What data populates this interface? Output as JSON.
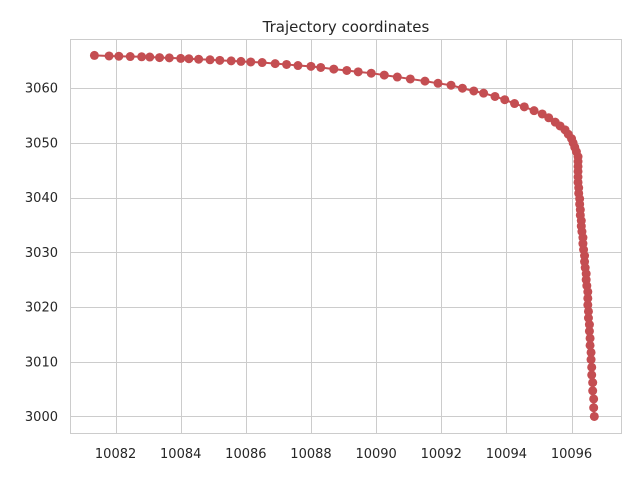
{
  "chart_data": {
    "type": "line",
    "title": "Trajectory coordinates",
    "xlabel": "",
    "ylabel": "",
    "xlim": [
      10080.6,
      10097.55
    ],
    "ylim": [
      2996.8,
      3069.0
    ],
    "xticks": [
      10082,
      10084,
      10086,
      10088,
      10090,
      10092,
      10094,
      10096
    ],
    "yticks": [
      3000,
      3010,
      3020,
      3030,
      3040,
      3050,
      3060
    ],
    "grid": true,
    "legend": false,
    "series": [
      {
        "color": "#c44e52",
        "marker": "circle",
        "points": [
          [
            10081.35,
            3066.0
          ],
          [
            10081.8,
            3065.9
          ],
          [
            10082.1,
            3065.85
          ],
          [
            10082.45,
            3065.8
          ],
          [
            10082.8,
            3065.75
          ],
          [
            10083.05,
            3065.7
          ],
          [
            10083.35,
            3065.6
          ],
          [
            10083.65,
            3065.55
          ],
          [
            10084.0,
            3065.45
          ],
          [
            10084.25,
            3065.4
          ],
          [
            10084.55,
            3065.3
          ],
          [
            10084.9,
            3065.2
          ],
          [
            10085.2,
            3065.1
          ],
          [
            10085.55,
            3065.0
          ],
          [
            10085.85,
            3064.9
          ],
          [
            10086.15,
            3064.8
          ],
          [
            10086.5,
            3064.7
          ],
          [
            10086.9,
            3064.5
          ],
          [
            10087.25,
            3064.35
          ],
          [
            10087.6,
            3064.15
          ],
          [
            10088.0,
            3064.0
          ],
          [
            10088.3,
            3063.8
          ],
          [
            10088.7,
            3063.5
          ],
          [
            10089.1,
            3063.25
          ],
          [
            10089.45,
            3063.0
          ],
          [
            10089.85,
            3062.75
          ],
          [
            10090.25,
            3062.4
          ],
          [
            10090.65,
            3062.05
          ],
          [
            10091.05,
            3061.7
          ],
          [
            10091.5,
            3061.3
          ],
          [
            10091.9,
            3060.9
          ],
          [
            10092.3,
            3060.55
          ],
          [
            10092.65,
            3060.0
          ],
          [
            10093.0,
            3059.5
          ],
          [
            10093.3,
            3059.1
          ],
          [
            10093.65,
            3058.5
          ],
          [
            10093.95,
            3057.9
          ],
          [
            10094.25,
            3057.2
          ],
          [
            10094.55,
            3056.6
          ],
          [
            10094.85,
            3055.9
          ],
          [
            10095.1,
            3055.3
          ],
          [
            10095.3,
            3054.6
          ],
          [
            10095.5,
            3053.8
          ],
          [
            10095.65,
            3053.1
          ],
          [
            10095.8,
            3052.4
          ],
          [
            10095.9,
            3051.6
          ],
          [
            10096.0,
            3050.8
          ],
          [
            10096.05,
            3050.0
          ],
          [
            10096.1,
            3049.2
          ],
          [
            10096.15,
            3048.4
          ],
          [
            10096.2,
            3047.5
          ],
          [
            10096.2,
            3046.6
          ],
          [
            10096.2,
            3045.7
          ],
          [
            10096.2,
            3044.8
          ],
          [
            10096.2,
            3043.8
          ],
          [
            10096.2,
            3042.8
          ],
          [
            10096.22,
            3041.8
          ],
          [
            10096.22,
            3040.8
          ],
          [
            10096.25,
            3039.8
          ],
          [
            10096.25,
            3038.8
          ],
          [
            10096.27,
            3037.8
          ],
          [
            10096.27,
            3036.8
          ],
          [
            10096.3,
            3035.8
          ],
          [
            10096.3,
            3034.8
          ],
          [
            10096.32,
            3033.8
          ],
          [
            10096.35,
            3032.7
          ],
          [
            10096.35,
            3031.6
          ],
          [
            10096.37,
            3030.5
          ],
          [
            10096.4,
            3029.4
          ],
          [
            10096.4,
            3028.3
          ],
          [
            10096.42,
            3027.2
          ],
          [
            10096.45,
            3026.1
          ],
          [
            10096.45,
            3025.0
          ],
          [
            10096.47,
            3023.9
          ],
          [
            10096.5,
            3022.8
          ],
          [
            10096.5,
            3021.6
          ],
          [
            10096.5,
            3020.4
          ],
          [
            10096.52,
            3019.2
          ],
          [
            10096.52,
            3018.0
          ],
          [
            10096.55,
            3016.8
          ],
          [
            10096.55,
            3015.6
          ],
          [
            10096.57,
            3014.3
          ],
          [
            10096.57,
            3013.0
          ],
          [
            10096.6,
            3011.7
          ],
          [
            10096.6,
            3010.4
          ],
          [
            10096.62,
            3009.0
          ],
          [
            10096.62,
            3007.6
          ],
          [
            10096.65,
            3006.2
          ],
          [
            10096.65,
            3004.7
          ],
          [
            10096.68,
            3003.2
          ],
          [
            10096.68,
            3001.6
          ],
          [
            10096.7,
            3000.0
          ]
        ]
      }
    ]
  }
}
